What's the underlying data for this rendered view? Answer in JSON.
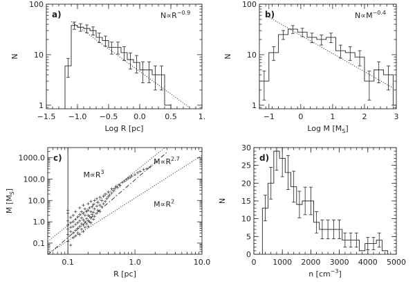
{
  "chart_data": [
    {
      "id": "a",
      "panel_label": "a)",
      "type": "histogram",
      "xlabel": "Log R [pc]",
      "ylabel": "N",
      "x_scale": "linear",
      "y_scale": "log",
      "xlim": [
        -1.5,
        1.0
      ],
      "ylim": [
        0.85,
        100
      ],
      "x_ticks": [
        -1.5,
        -1.0,
        -0.5,
        0.0,
        0.5,
        1.0
      ],
      "x_tick_labels": [
        "−1.5",
        "−1.0",
        "−0.5",
        "0.0",
        "0.5",
        "1."
      ],
      "y_ticks": [
        1,
        10,
        100
      ],
      "y_tick_labels": [
        "1",
        "10",
        "100"
      ],
      "annotation": {
        "base": "N∝R",
        "exp": "−0.9"
      },
      "bin_edges": [
        -1.2,
        -1.1,
        -1.0,
        -0.9,
        -0.8,
        -0.7,
        -0.6,
        -0.5,
        -0.4,
        -0.3,
        -0.2,
        -0.1,
        0.0,
        0.1,
        0.2,
        0.3,
        0.4,
        0.5
      ],
      "counts": [
        6,
        38,
        35,
        33,
        30,
        22,
        19,
        14,
        14,
        11,
        8,
        7,
        5,
        5,
        4,
        4,
        1
      ],
      "errorbars": true,
      "fit": {
        "style": "dotted",
        "points": [
          [
            -1.1,
            45
          ],
          [
            0.8,
            0.9
          ]
        ]
      }
    },
    {
      "id": "b",
      "panel_label": "b)",
      "type": "histogram",
      "xlabel": "Log M [M",
      "xlabel_sub": "S",
      "xlabel_end": "]",
      "ylabel": "N",
      "x_scale": "linear",
      "y_scale": "log",
      "xlim": [
        -1.3,
        3.0
      ],
      "ylim": [
        0.85,
        100
      ],
      "x_ticks": [
        -1,
        0,
        1,
        2,
        3
      ],
      "x_tick_labels": [
        "−1",
        "0",
        "1",
        "2",
        "3"
      ],
      "y_ticks": [
        1,
        10,
        100
      ],
      "y_tick_labels": [
        "1",
        "10",
        "100"
      ],
      "annotation": {
        "base": "N∝M",
        "exp": "−0.4"
      },
      "bin_edges": [
        -1.3,
        -1.0,
        -0.7,
        -0.4,
        -0.1,
        0.2,
        0.5,
        0.8,
        1.1,
        1.4,
        1.7,
        2.0,
        2.3,
        2.6,
        2.9,
        3.0
      ],
      "counts": [
        3,
        11,
        25,
        32,
        28,
        22,
        20,
        22,
        12,
        11,
        9,
        3,
        5,
        4,
        1
      ],
      "errorbars": true,
      "fit": {
        "style": "dotted",
        "points": [
          [
            -1.1,
            60
          ],
          [
            2.95,
            2.1
          ]
        ]
      }
    },
    {
      "id": "c",
      "panel_label": "c)",
      "type": "scatter",
      "xlabel": "R [pc]",
      "ylabel": "M [M",
      "ylabel_sub": "S",
      "ylabel_end": "]",
      "x_scale": "log",
      "y_scale": "log",
      "xlim": [
        0.05,
        10.0
      ],
      "ylim": [
        0.03,
        3000
      ],
      "x_ticks": [
        0.1,
        1.0,
        10.0
      ],
      "x_tick_labels": [
        "0.1",
        "1.0",
        "10.0"
      ],
      "y_ticks": [
        0.1,
        1,
        10,
        100,
        1000
      ],
      "y_tick_labels": [
        "0.1",
        "1.0",
        "10.0",
        "100.0",
        "1000.0"
      ],
      "annotations": [
        {
          "base": "M∝R",
          "exp": "3",
          "x": 0.17,
          "y": 120
        },
        {
          "base": "M∝R",
          "exp": "2.7",
          "x": 1.9,
          "y": 500
        },
        {
          "base": "M∝R",
          "exp": "2",
          "x": 1.9,
          "y": 5
        }
      ],
      "vline_x": 0.1,
      "lines": [
        {
          "style": "dotted",
          "points": [
            [
              0.05,
              0.12
            ],
            [
              2.8,
              3000
            ]
          ]
        },
        {
          "style": "dotted",
          "points": [
            [
              0.05,
              0.032
            ],
            [
              10.0,
              1300
            ]
          ]
        },
        {
          "style": "dashdot",
          "points": [
            [
              0.05,
              0.028
            ],
            [
              3.0,
              1800
            ]
          ]
        }
      ],
      "points": [
        [
          0.1,
          0.12
        ],
        [
          0.1,
          0.25
        ],
        [
          0.1,
          0.45
        ],
        [
          0.1,
          0.7
        ],
        [
          0.1,
          1.1
        ],
        [
          0.1,
          2.5
        ],
        [
          0.1,
          3.5
        ],
        [
          0.11,
          0.08
        ],
        [
          0.11,
          0.35
        ],
        [
          0.11,
          0.55
        ],
        [
          0.11,
          0.9
        ],
        [
          0.11,
          1.6
        ],
        [
          0.12,
          0.18
        ],
        [
          0.12,
          0.3
        ],
        [
          0.12,
          0.6
        ],
        [
          0.12,
          1.0
        ],
        [
          0.12,
          2.0
        ],
        [
          0.13,
          0.22
        ],
        [
          0.13,
          0.4
        ],
        [
          0.13,
          0.75
        ],
        [
          0.13,
          1.3
        ],
        [
          0.13,
          3.0
        ],
        [
          0.14,
          0.3
        ],
        [
          0.14,
          0.5
        ],
        [
          0.14,
          0.9
        ],
        [
          0.14,
          1.7
        ],
        [
          0.15,
          0.25
        ],
        [
          0.15,
          0.6
        ],
        [
          0.15,
          1.1
        ],
        [
          0.15,
          2.2
        ],
        [
          0.15,
          4.5
        ],
        [
          0.16,
          0.45
        ],
        [
          0.16,
          0.8
        ],
        [
          0.16,
          1.5
        ],
        [
          0.16,
          3.0
        ],
        [
          0.17,
          0.35
        ],
        [
          0.17,
          0.7
        ],
        [
          0.17,
          1.2
        ],
        [
          0.17,
          2.5
        ],
        [
          0.17,
          6.0
        ],
        [
          0.18,
          0.55
        ],
        [
          0.18,
          1.0
        ],
        [
          0.18,
          2.0
        ],
        [
          0.18,
          4.0
        ],
        [
          0.19,
          0.8
        ],
        [
          0.19,
          1.4
        ],
        [
          0.19,
          3.0
        ],
        [
          0.2,
          0.6
        ],
        [
          0.2,
          1.1
        ],
        [
          0.2,
          2.0
        ],
        [
          0.2,
          3.5
        ],
        [
          0.2,
          7.0
        ],
        [
          0.21,
          1.0
        ],
        [
          0.21,
          1.8
        ],
        [
          0.21,
          4.5
        ],
        [
          0.22,
          0.9
        ],
        [
          0.22,
          1.5
        ],
        [
          0.22,
          3.0
        ],
        [
          0.22,
          9.0
        ],
        [
          0.23,
          2.2
        ],
        [
          0.23,
          5.0
        ],
        [
          0.24,
          1.3
        ],
        [
          0.24,
          2.8
        ],
        [
          0.24,
          6.5
        ],
        [
          0.25,
          1.8
        ],
        [
          0.25,
          4.0
        ],
        [
          0.25,
          10.0
        ],
        [
          0.27,
          2.5
        ],
        [
          0.27,
          5.5
        ],
        [
          0.27,
          12.0
        ],
        [
          0.28,
          3.5
        ],
        [
          0.28,
          8.0
        ],
        [
          0.3,
          3.0
        ],
        [
          0.3,
          6.0
        ],
        [
          0.3,
          14.0
        ],
        [
          0.32,
          5.0
        ],
        [
          0.32,
          10.0
        ],
        [
          0.34,
          7.0
        ],
        [
          0.34,
          16.0
        ],
        [
          0.36,
          9.0
        ],
        [
          0.36,
          20.0
        ],
        [
          0.38,
          12.0
        ],
        [
          0.4,
          15.0
        ],
        [
          0.4,
          25.0
        ],
        [
          0.42,
          18.0
        ],
        [
          0.45,
          22.0
        ],
        [
          0.45,
          35.0
        ],
        [
          0.48,
          28.0
        ],
        [
          0.5,
          35.0
        ],
        [
          0.52,
          45.0
        ],
        [
          0.55,
          40.0
        ],
        [
          0.58,
          55.0
        ],
        [
          0.6,
          50.0
        ],
        [
          0.65,
          70.0
        ],
        [
          0.7,
          80.0
        ],
        [
          0.75,
          95.0
        ],
        [
          0.8,
          110.0
        ],
        [
          0.85,
          120.0
        ],
        [
          0.9,
          140.0
        ],
        [
          1.0,
          160.0
        ],
        [
          1.1,
          200.0
        ],
        [
          1.2,
          230.0
        ],
        [
          1.35,
          280.0
        ],
        [
          1.5,
          300.0
        ],
        [
          1.7,
          380.0
        ]
      ]
    },
    {
      "id": "d",
      "panel_label": "d)",
      "type": "histogram",
      "xlabel": "n [cm",
      "xlabel_sup": "−3",
      "xlabel_end": "]",
      "ylabel": "N",
      "x_scale": "linear",
      "y_scale": "linear",
      "xlim": [
        0,
        5000
      ],
      "ylim": [
        0,
        30
      ],
      "x_ticks": [
        0,
        1000,
        2000,
        3000,
        4000,
        5000
      ],
      "x_tick_labels": [
        "0",
        "1000",
        "2000",
        "3000",
        "4000",
        "5000"
      ],
      "y_ticks": [
        0,
        5,
        10,
        15,
        20,
        25,
        30
      ],
      "y_tick_labels": [
        "0",
        "5",
        "10",
        "15",
        "20",
        "25",
        "30"
      ],
      "bin_edges": [
        300,
        500,
        700,
        900,
        1100,
        1300,
        1500,
        1700,
        1900,
        2100,
        2300,
        2500,
        2700,
        2900,
        3100,
        3300,
        3500,
        3700,
        3900,
        4100,
        4300,
        4500,
        4700
      ],
      "counts": [
        13,
        20,
        29,
        27,
        23,
        19,
        14,
        15,
        15,
        9,
        7,
        7,
        7,
        7,
        4,
        4,
        4,
        1,
        3,
        3,
        4,
        1
      ],
      "errorbars": true
    }
  ]
}
